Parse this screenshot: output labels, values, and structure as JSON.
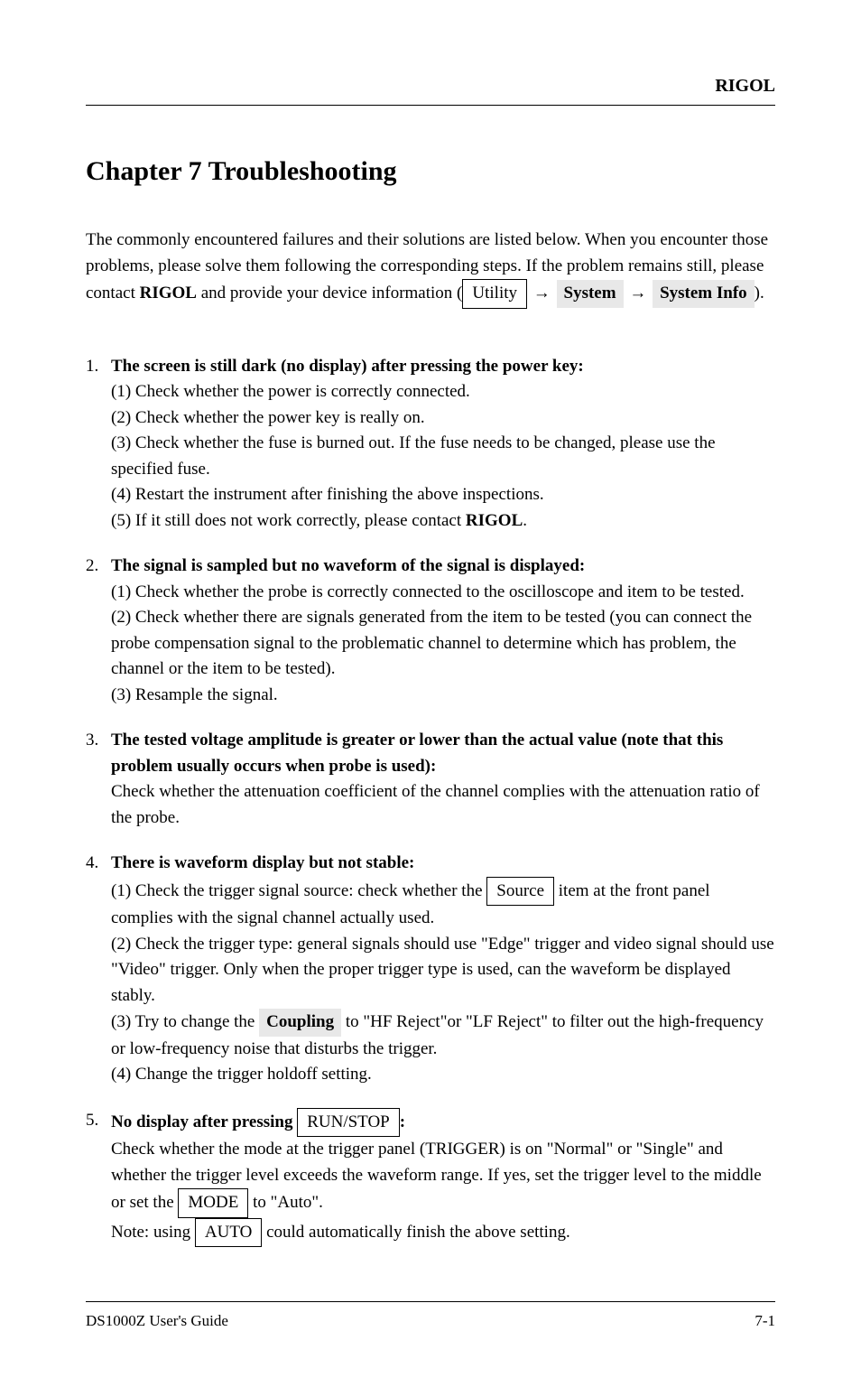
{
  "header": {
    "brand": "RIGOL"
  },
  "title": "Chapter 7 Troubleshooting",
  "intro": {
    "text_a": "The commonly encountered failures and their solutions are listed below. When you encounter those problems, please solve them following the corresponding steps. If the problem remains still, please contact ",
    "brand": "RIGOL",
    "text_b": " and provide your device information (",
    "btn": "Utility",
    "arrow1": "→",
    "menu1": "System",
    "arrow2": "→",
    "menu2": "System Info",
    "text_c": ")."
  },
  "items": {
    "i1": {
      "lead": "The screen is still dark (no display) after pressing the power key:",
      "sub": [
        "(1)  Check whether the power is correctly connected.",
        "(2)  Check whether the power key is really on.",
        "(3)  Check whether the fuse is burned out. If the fuse needs to be changed, please use the specified fuse.",
        "(4)  Restart the instrument after finishing the above inspections."
      ],
      "tail_a": "(5)  If it still does not work correctly, please contact ",
      "tail_brand": "RIGOL",
      "tail_b": "."
    },
    "i2": {
      "lead": "The signal is sampled but no waveform of the signal is displayed:",
      "sub": [
        "(1)  Check whether the probe is correctly connected to the oscilloscope and item to be tested.",
        "(2)  Check whether there are signals generated from the item to be tested (you can connect the probe compensation signal to the problematic channel to determine which has problem, the channel or the item to be tested).",
        "(3)  Resample the signal."
      ]
    },
    "i3": {
      "lead_a": "The tested voltage amplitude is greater or lower than the actual value (note that this problem usually occurs when probe is used):",
      "body_a": "Check whether the attenuation coefficient of the channel complies with the attenuation ratio of the probe."
    },
    "i4": {
      "lead": "There is waveform display but not stable:",
      "sub1_a": "(1)  Check the trigger signal source: check whether the ",
      "sub1_btn": "Source",
      "sub1_b": " item at the front panel complies with the signal channel actually used.",
      "sub2_a": "(2)  Check the trigger type: general signals should use \"Edge\" trigger and video signal should use \"Video\" trigger. Only when the proper trigger type is used, can the waveform be displayed stably.",
      "sub3_a": "(3)  Try to change the ",
      "sub3_btn": "Coupling",
      "sub3_b": " to \"HF Reject\"or \"LF Reject\" to filter out the high-frequency or low-frequency noise that disturbs the trigger.",
      "sub4": "(4)  Change the trigger holdoff setting."
    },
    "i5": {
      "lead_a": "No display after pressing ",
      "lead_btn": "RUN/STOP",
      "lead_b": ":",
      "body_a": "Check whether the mode at the trigger panel (TRIGGER) is on \"Normal\" or \"Single\" and whether the trigger level exceeds the waveform range. If yes, set the trigger level to the middle or set the ",
      "body_btn1": "MODE",
      "body_b": " to \"Auto\".",
      "note_a": "Note: using ",
      "note_btn": "AUTO",
      "note_b": " could automatically finish the above setting."
    }
  },
  "footer": {
    "left": "DS1000Z User's Guide",
    "right": "7-1"
  }
}
